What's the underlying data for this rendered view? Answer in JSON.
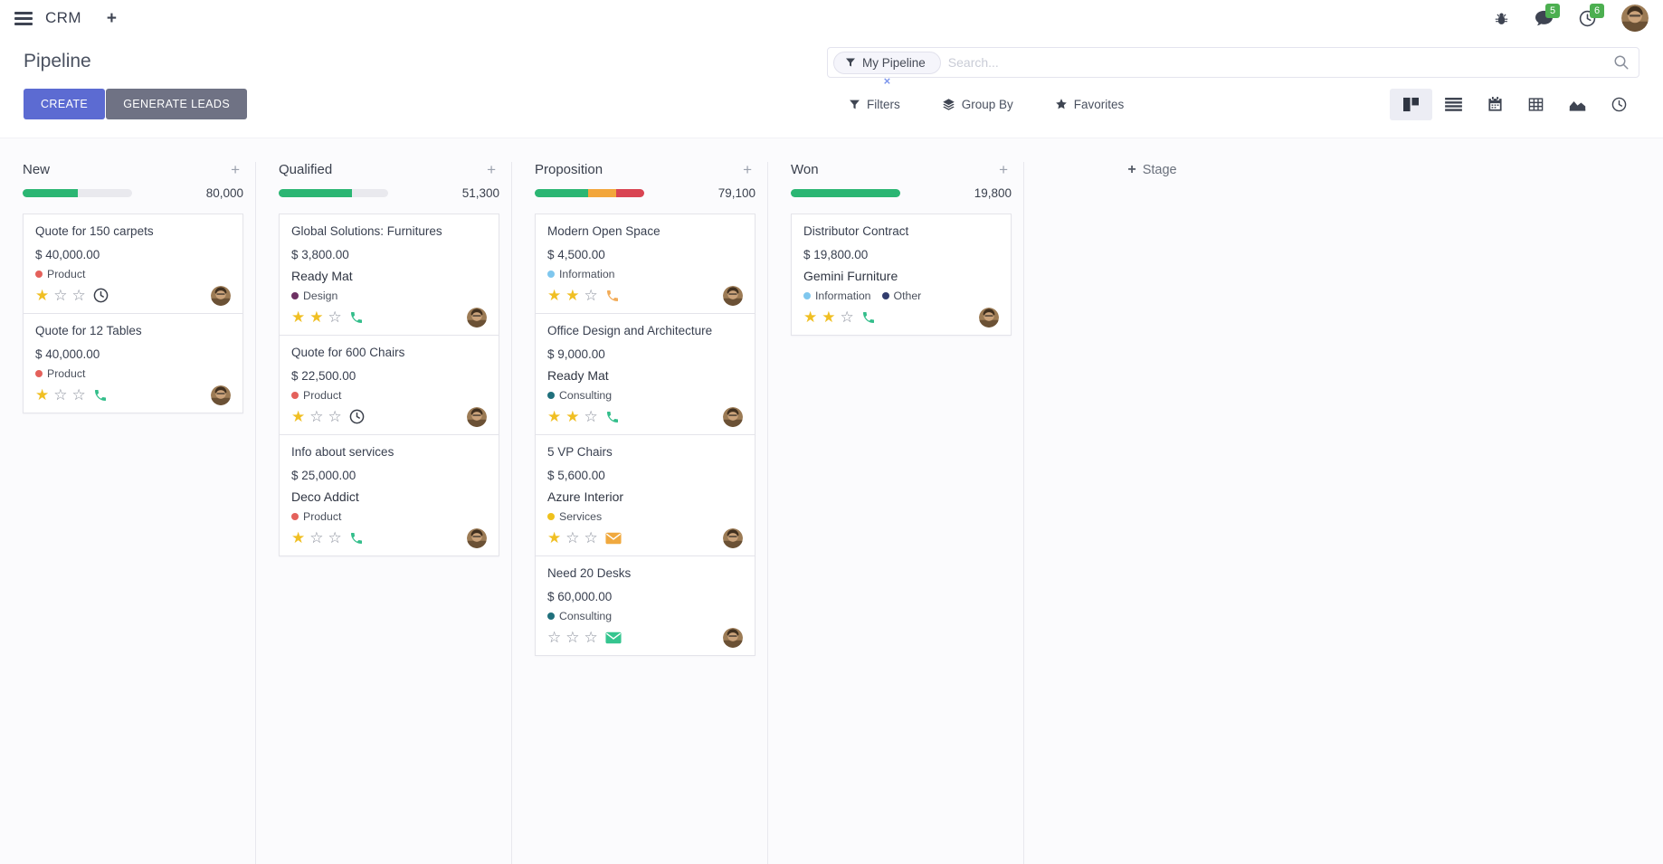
{
  "topbar": {
    "app_name": "CRM",
    "badges": {
      "messages": "5",
      "activities": "6"
    },
    "badge_color": "#4CAF50"
  },
  "control_panel": {
    "title": "Pipeline",
    "create_label": "CREATE",
    "generate_leads_label": "GENERATE LEADS",
    "filters_label": "Filters",
    "group_by_label": "Group By",
    "favorites_label": "Favorites",
    "search": {
      "facet": "My Pipeline",
      "placeholder": "Search..."
    },
    "view_switcher": {
      "active": "kanban",
      "views": [
        "kanban",
        "list",
        "calendar",
        "pivot",
        "graph",
        "activity"
      ]
    }
  },
  "kanban": {
    "add_stage_label": "Stage",
    "stars_max": 3,
    "colors": {
      "progress_green": "#2BB673",
      "progress_orange": "#F2A63B",
      "progress_red": "#D94452",
      "progress_track": "#E9E9EE",
      "star_filled": "#F0BF23",
      "star_empty": "#8C919D"
    },
    "columns": [
      {
        "name": "New",
        "total": "80,000",
        "progress": [
          {
            "color": "#2BB673",
            "pct": 50
          }
        ],
        "cards": [
          {
            "title": "Quote for 150 carpets",
            "amount": "$ 40,000.00",
            "partner": null,
            "tags": [
              {
                "label": "Product",
                "color": "#E4615B"
              }
            ],
            "stars": 1,
            "activity": {
              "type": "clock",
              "color": "#3A3F4A"
            }
          },
          {
            "title": "Quote for 12 Tables",
            "amount": "$ 40,000.00",
            "partner": null,
            "tags": [
              {
                "label": "Product",
                "color": "#E4615B"
              }
            ],
            "stars": 1,
            "activity": {
              "type": "phone",
              "color": "#33BE8B"
            }
          }
        ]
      },
      {
        "name": "Qualified",
        "total": "51,300",
        "progress": [
          {
            "color": "#2BB673",
            "pct": 67
          }
        ],
        "cards": [
          {
            "title": "Global Solutions: Furnitures",
            "amount": "$ 3,800.00",
            "partner": "Ready Mat",
            "tags": [
              {
                "label": "Design",
                "color": "#6D3163"
              }
            ],
            "stars": 2,
            "activity": {
              "type": "phone",
              "color": "#33BE8B"
            }
          },
          {
            "title": "Quote for 600 Chairs",
            "amount": "$ 22,500.00",
            "partner": null,
            "tags": [
              {
                "label": "Product",
                "color": "#E4615B"
              }
            ],
            "stars": 1,
            "activity": {
              "type": "clock",
              "color": "#3A3F4A"
            }
          },
          {
            "title": "Info about services",
            "amount": "$ 25,000.00",
            "partner": "Deco Addict",
            "tags": [
              {
                "label": "Product",
                "color": "#E4615B"
              }
            ],
            "stars": 1,
            "activity": {
              "type": "phone",
              "color": "#33BE8B"
            }
          }
        ]
      },
      {
        "name": "Proposition",
        "total": "79,100",
        "progress": [
          {
            "color": "#2BB673",
            "pct": 49
          },
          {
            "color": "#F2A63B",
            "pct": 25
          },
          {
            "color": "#D94452",
            "pct": 26
          }
        ],
        "cards": [
          {
            "title": "Modern Open Space",
            "amount": "$ 4,500.00",
            "partner": null,
            "tags": [
              {
                "label": "Information",
                "color": "#7FC7EE"
              }
            ],
            "stars": 2,
            "activity": {
              "type": "phone",
              "color": "#F2AC59"
            }
          },
          {
            "title": "Office Design and Architecture",
            "amount": "$ 9,000.00",
            "partner": "Ready Mat",
            "tags": [
              {
                "label": "Consulting",
                "color": "#20707C"
              }
            ],
            "stars": 2,
            "activity": {
              "type": "phone",
              "color": "#33BE8B"
            }
          },
          {
            "title": "5 VP Chairs",
            "amount": "$ 5,600.00",
            "partner": "Azure Interior",
            "tags": [
              {
                "label": "Services",
                "color": "#EFC11C"
              }
            ],
            "stars": 1,
            "activity": {
              "type": "envelope",
              "color": "#F0A93F"
            }
          },
          {
            "title": "Need 20 Desks",
            "amount": "$ 60,000.00",
            "partner": null,
            "tags": [
              {
                "label": "Consulting",
                "color": "#20707C"
              }
            ],
            "stars": 0,
            "activity": {
              "type": "envelope",
              "color": "#35C58F"
            }
          }
        ]
      },
      {
        "name": "Won",
        "total": "19,800",
        "progress": [
          {
            "color": "#2BB673",
            "pct": 100
          }
        ],
        "cards": [
          {
            "title": "Distributor Contract",
            "amount": "$ 19,800.00",
            "partner": "Gemini Furniture",
            "tags": [
              {
                "label": "Information",
                "color": "#7FC7EE"
              },
              {
                "label": "Other",
                "color": "#323D6E"
              }
            ],
            "stars": 2,
            "activity": {
              "type": "phone",
              "color": "#33BE8B"
            }
          }
        ]
      }
    ]
  }
}
